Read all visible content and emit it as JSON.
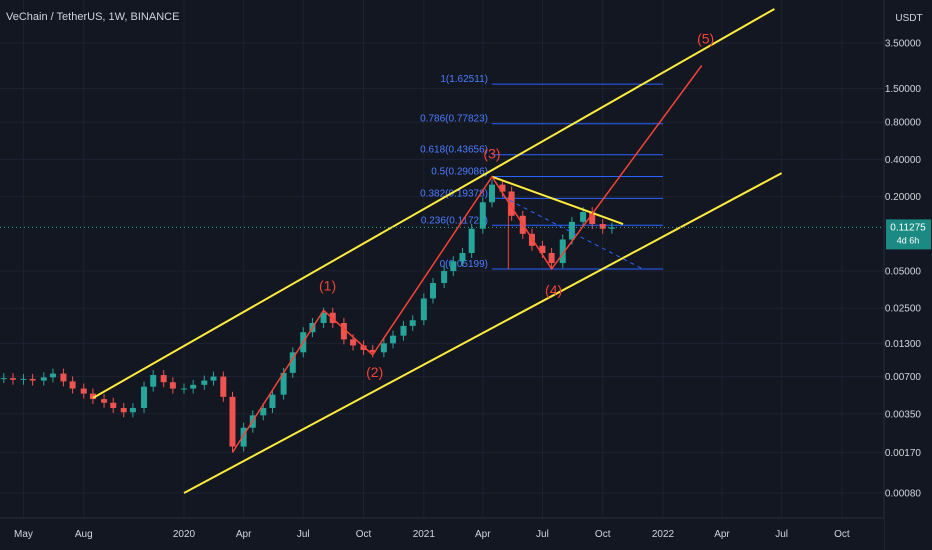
{
  "title": "VeChain / TetherUS, 1W, BINANCE",
  "currency": "USDT",
  "price_label": {
    "value": "0.11275",
    "countdown": "4d 6h"
  },
  "colors": {
    "background": "#131722",
    "grid": "#1e2230",
    "up": "#26a69a",
    "down": "#ef5350",
    "channel": "#ffeb3b",
    "wave": "#f44336",
    "fib": "#2962ff",
    "fib_text": "#4c7dff",
    "price_tag": "#1a8a82",
    "axis_text": "#d1d4dc",
    "text": "#d1d4dc"
  },
  "chart_data": {
    "type": "candlestick",
    "title": "VeChain / TetherUS, 1W, BINANCE",
    "y_scale": "log",
    "y_ticks": [
      3.5,
      1.5,
      0.8,
      0.4,
      0.2,
      0.05,
      0.025,
      0.013,
      0.007,
      0.0035,
      0.0017,
      0.0008
    ],
    "y_tick_labels": [
      "3.50000",
      "1.50000",
      "0.80000",
      "0.40000",
      "0.20000",
      "0.05000",
      "0.02500",
      "0.01300",
      "0.00700",
      "0.00350",
      "0.00170",
      "0.00080"
    ],
    "x_ticks": [
      {
        "date": "2019-05-01",
        "label": "May"
      },
      {
        "date": "2019-08-01",
        "label": "Aug"
      },
      {
        "date": "2020-01-01",
        "label": "2020"
      },
      {
        "date": "2020-04-01",
        "label": "Apr"
      },
      {
        "date": "2020-07-01",
        "label": "Jul"
      },
      {
        "date": "2020-10-01",
        "label": "Oct"
      },
      {
        "date": "2021-01-01",
        "label": "2021"
      },
      {
        "date": "2021-04-01",
        "label": "Apr"
      },
      {
        "date": "2021-07-01",
        "label": "Jul"
      },
      {
        "date": "2021-10-01",
        "label": "Oct"
      },
      {
        "date": "2022-01-01",
        "label": "2022"
      },
      {
        "date": "2022-04-01",
        "label": "Apr"
      },
      {
        "date": "2022-07-01",
        "label": "Jul"
      },
      {
        "date": "2022-10-01",
        "label": "Oct"
      }
    ],
    "last_price": 0.11275,
    "candles": [
      {
        "date": "2019-04-01",
        "close": 0.0068
      },
      {
        "date": "2019-04-15",
        "close": 0.0066
      },
      {
        "date": "2019-05-01",
        "close": 0.0067
      },
      {
        "date": "2019-05-15",
        "close": 0.0065
      },
      {
        "date": "2019-06-01",
        "close": 0.0069
      },
      {
        "date": "2019-06-15",
        "close": 0.0074
      },
      {
        "date": "2019-07-01",
        "close": 0.0064
      },
      {
        "date": "2019-07-15",
        "close": 0.0056
      },
      {
        "date": "2019-08-01",
        "close": 0.0051
      },
      {
        "date": "2019-08-15",
        "close": 0.0046
      },
      {
        "date": "2019-09-01",
        "close": 0.0043
      },
      {
        "date": "2019-09-15",
        "close": 0.0039
      },
      {
        "date": "2019-10-01",
        "close": 0.0036
      },
      {
        "date": "2019-10-15",
        "close": 0.0039
      },
      {
        "date": "2019-11-01",
        "close": 0.0058
      },
      {
        "date": "2019-11-15",
        "close": 0.0072
      },
      {
        "date": "2019-12-01",
        "close": 0.0063
      },
      {
        "date": "2019-12-15",
        "close": 0.0056
      },
      {
        "date": "2020-01-01",
        "close": 0.0056
      },
      {
        "date": "2020-01-15",
        "close": 0.006
      },
      {
        "date": "2020-02-01",
        "close": 0.0065
      },
      {
        "date": "2020-02-15",
        "close": 0.007
      },
      {
        "date": "2020-03-01",
        "close": 0.0048
      },
      {
        "date": "2020-03-15",
        "close": 0.0019
      },
      {
        "date": "2020-04-01",
        "close": 0.0027
      },
      {
        "date": "2020-04-15",
        "close": 0.0034
      },
      {
        "date": "2020-05-01",
        "close": 0.0039
      },
      {
        "date": "2020-05-15",
        "close": 0.005
      },
      {
        "date": "2020-06-01",
        "close": 0.0075
      },
      {
        "date": "2020-06-15",
        "close": 0.011
      },
      {
        "date": "2020-07-01",
        "close": 0.016
      },
      {
        "date": "2020-07-15",
        "close": 0.019
      },
      {
        "date": "2020-08-01",
        "close": 0.023
      },
      {
        "date": "2020-08-15",
        "close": 0.019
      },
      {
        "date": "2020-09-01",
        "close": 0.014
      },
      {
        "date": "2020-09-15",
        "close": 0.0125
      },
      {
        "date": "2020-10-01",
        "close": 0.0115
      },
      {
        "date": "2020-10-15",
        "close": 0.011
      },
      {
        "date": "2020-11-01",
        "close": 0.013
      },
      {
        "date": "2020-11-15",
        "close": 0.015
      },
      {
        "date": "2020-12-01",
        "close": 0.018
      },
      {
        "date": "2020-12-15",
        "close": 0.02
      },
      {
        "date": "2021-01-01",
        "close": 0.03
      },
      {
        "date": "2021-01-15",
        "close": 0.04
      },
      {
        "date": "2021-02-01",
        "close": 0.05
      },
      {
        "date": "2021-02-15",
        "close": 0.06
      },
      {
        "date": "2021-03-01",
        "close": 0.07
      },
      {
        "date": "2021-03-15",
        "close": 0.11
      },
      {
        "date": "2021-04-01",
        "close": 0.18
      },
      {
        "date": "2021-04-15",
        "close": 0.25
      },
      {
        "date": "2021-05-01",
        "close": 0.22
      },
      {
        "date": "2021-05-15",
        "close": 0.14
      },
      {
        "date": "2021-06-01",
        "close": 0.1
      },
      {
        "date": "2021-06-15",
        "close": 0.08
      },
      {
        "date": "2021-07-01",
        "close": 0.07
      },
      {
        "date": "2021-07-15",
        "close": 0.058
      },
      {
        "date": "2021-08-01",
        "close": 0.09
      },
      {
        "date": "2021-08-15",
        "close": 0.125
      },
      {
        "date": "2021-09-01",
        "close": 0.15
      },
      {
        "date": "2021-09-15",
        "close": 0.12
      },
      {
        "date": "2021-10-01",
        "close": 0.11
      },
      {
        "date": "2021-10-15",
        "close": 0.1128
      }
    ],
    "fibonacci_levels": [
      {
        "label": "1(1.62511)",
        "value": 1.62511
      },
      {
        "label": "0.786(0.77823)",
        "value": 0.77823
      },
      {
        "label": "0.618(0.43656)",
        "value": 0.43656
      },
      {
        "label": "0.5(0.29086)",
        "value": 0.29086
      },
      {
        "label": "0.382(0.19378)",
        "value": 0.19378
      },
      {
        "label": "0.236(0.11722)",
        "value": 0.11722
      },
      {
        "label": "0(0.05199)",
        "value": 0.05199
      }
    ],
    "wave_labels": [
      "(1)",
      "(2)",
      "(3)",
      "(4)",
      "(5)"
    ],
    "elliott_path": [
      {
        "date": "2020-03-15",
        "price": 0.0017
      },
      {
        "date": "2020-08-01",
        "price": 0.024
      },
      {
        "date": "2020-10-15",
        "price": 0.0105
      },
      {
        "date": "2021-04-15",
        "price": 0.29
      },
      {
        "date": "2021-07-15",
        "price": 0.052
      },
      {
        "date": "2022-03-01",
        "price": 2.3
      }
    ],
    "channel_lines": [
      {
        "from": {
          "date": "2019-08-15",
          "price": 0.0047
        },
        "to": {
          "date": "2022-06-20",
          "price": 6.6
        }
      },
      {
        "from": {
          "date": "2020-01-01",
          "price": 0.0008
        },
        "to": {
          "date": "2022-07-01",
          "price": 0.31
        }
      }
    ],
    "triangle_resistance": {
      "from": {
        "date": "2021-04-15",
        "price": 0.29
      },
      "to": {
        "date": "2021-11-01",
        "price": 0.12
      }
    },
    "dashed_projection": {
      "from": {
        "date": "2021-05-01",
        "price": 0.2
      },
      "to": {
        "date": "2021-12-01",
        "price": 0.052
      }
    }
  }
}
